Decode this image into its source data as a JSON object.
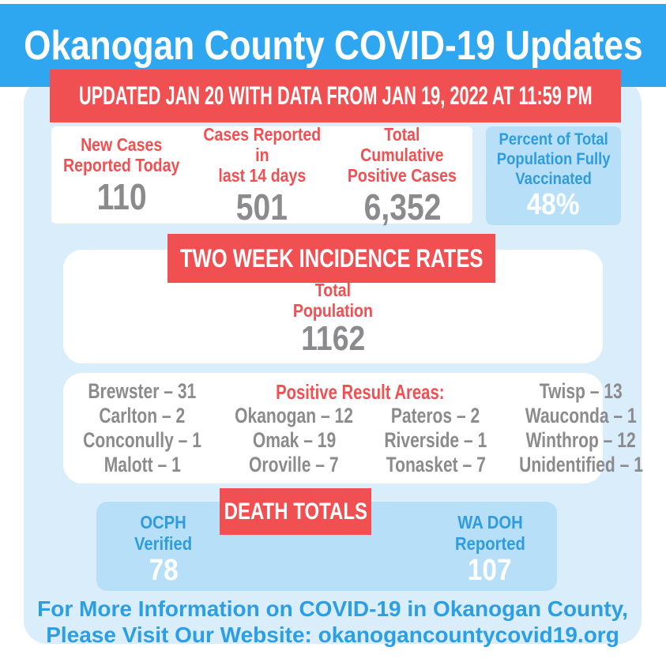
{
  "colors": {
    "header_cyan": "#2fa7f0",
    "banner_red": "#f15052",
    "panel_light_blue": "#d9edfb",
    "box_mid_blue": "#b7e0f8",
    "blue_text": "#2f9cdf",
    "gray_number": "#8b8b8e",
    "footer_blue": "#2b9ee4",
    "white": "#ffffff"
  },
  "header": {
    "title": "Okanogan County COVID-19 Updates"
  },
  "update_banner": {
    "text": "UPDATED JAN 20 WITH DATA FROM JAN 19, 2022 AT 11:59 PM"
  },
  "stats": [
    {
      "label": "New Cases\nReported Today",
      "value": "110"
    },
    {
      "label": "Cases Reported in\nlast 14 days",
      "value": "501"
    },
    {
      "label": "Total Cumulative\nPositive Cases",
      "value": "6,352"
    }
  ],
  "vaccination": {
    "label": "Percent of Total\nPopulation Fully\nVaccinated",
    "value": "48%"
  },
  "incidence": {
    "banner": "TWO WEEK INCIDENCE RATES",
    "total_label": "Total\nPopulation",
    "total_value": "1162",
    "areas_heading": "Positive Result Areas:",
    "areas": {
      "r1c1": "Brewster – 31",
      "r1c4": "Twisp – 13",
      "r2c1": "Carlton – 2",
      "r2c2": "Okanogan – 12",
      "r2c3": "Pateros – 2",
      "r2c4": "Wauconda – 1",
      "r3c1": "Conconully – 1",
      "r3c2": "Omak – 19",
      "r3c3": "Riverside – 1",
      "r3c4": "Winthrop – 12",
      "r4c1": "Malott – 1",
      "r4c2": "Oroville – 7",
      "r4c3": "Tonasket – 7",
      "r4c4": "Unidentified – 1"
    }
  },
  "deaths": {
    "banner": "DEATH TOTALS",
    "ocph": {
      "label": "OCPH\nVerified",
      "value": "78"
    },
    "wadoh": {
      "label": "WA DOH\nReported",
      "value": "107"
    }
  },
  "footer": {
    "line1": "For More Information on COVID-19 in Okanogan County,",
    "line2": "Please Visit Our Website: okanogancountycovid19.org"
  }
}
